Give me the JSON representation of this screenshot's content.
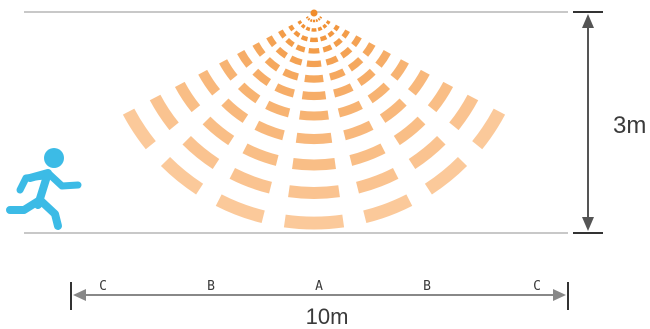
{
  "height_label": "3m",
  "width_label": "10m",
  "zones": [
    "C",
    "B",
    "A",
    "B",
    "C"
  ],
  "colors": {
    "ring_near": "#f08c2c",
    "ring_far": "#fbc99a",
    "person": "#3cbbe6",
    "guide_line": "#c8c8c8",
    "dim_line": "#555555"
  },
  "icons": [
    "motion-sensor-icon",
    "running-person-icon"
  ]
}
